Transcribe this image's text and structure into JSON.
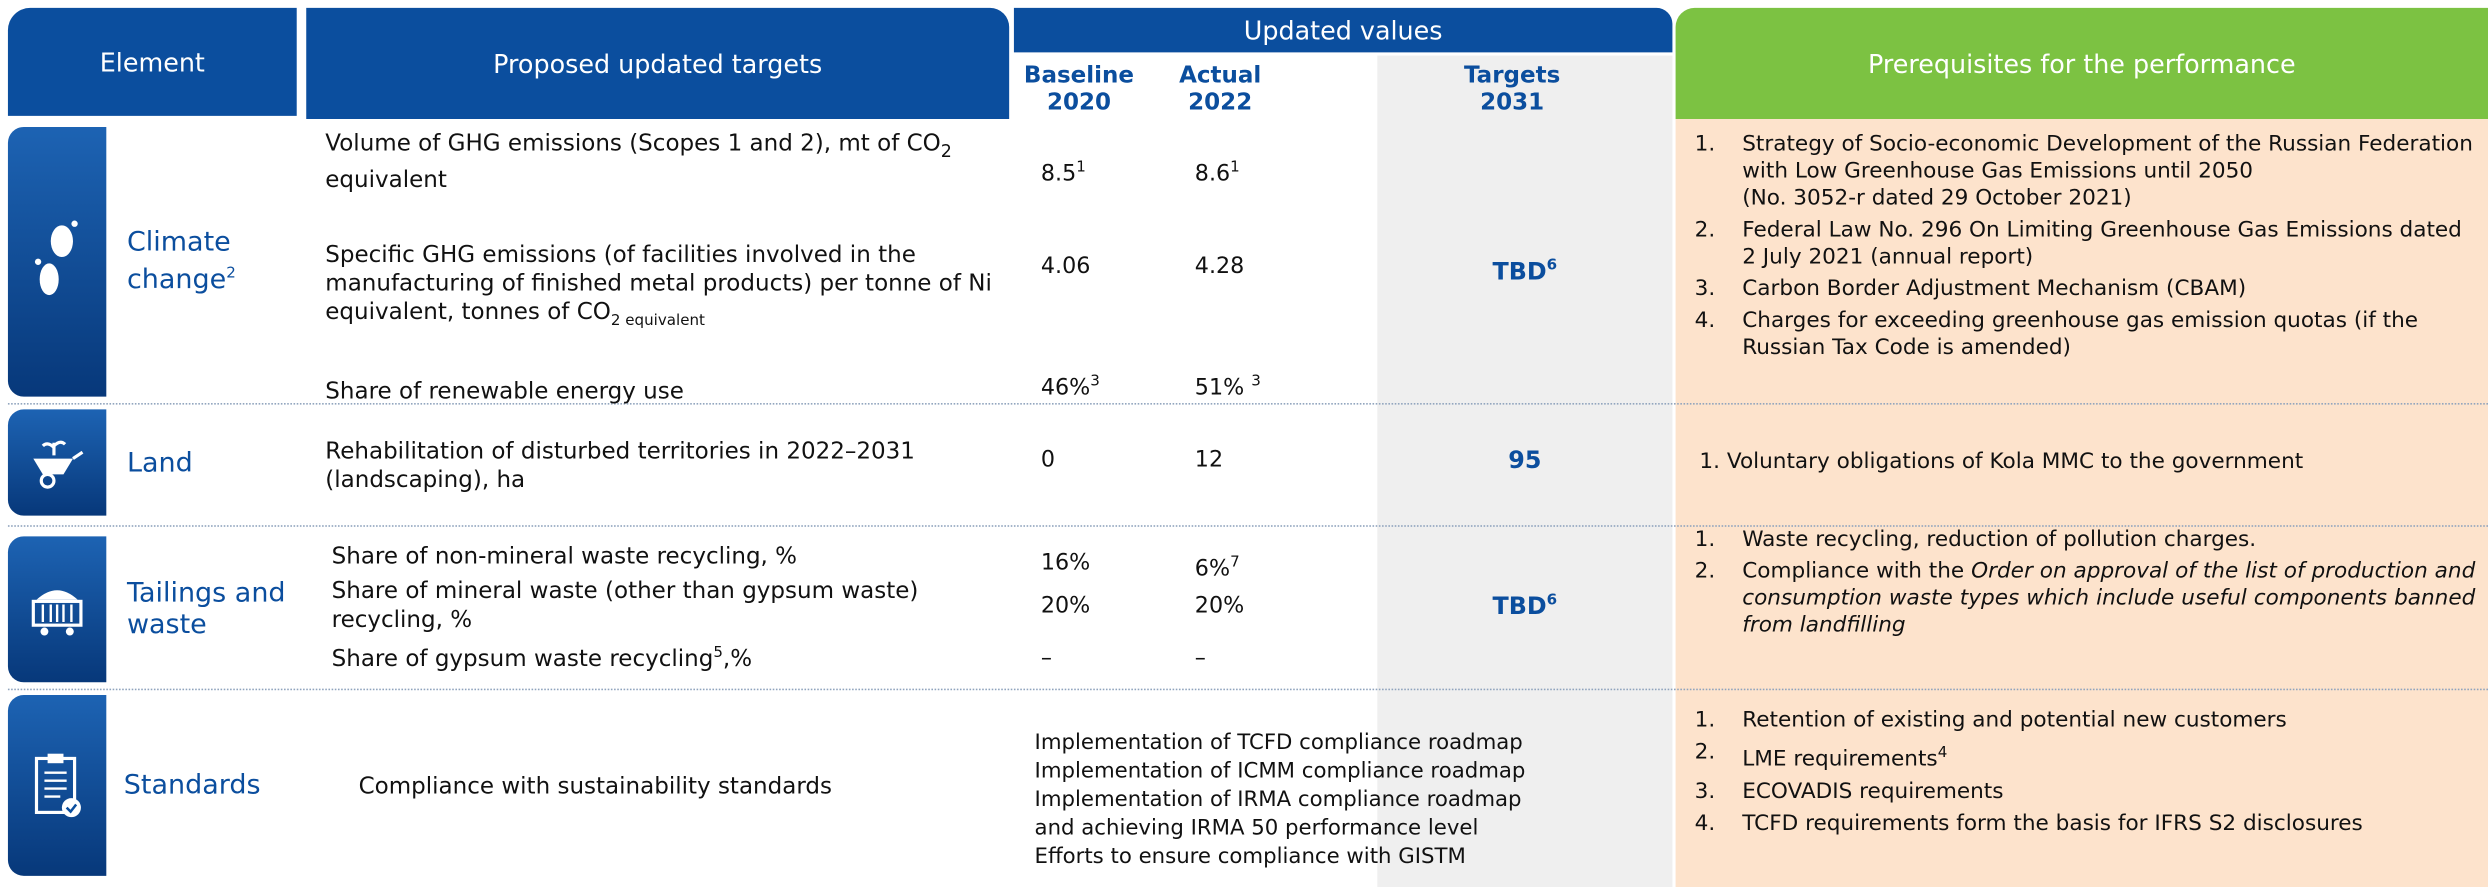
{
  "header": {
    "element": "Element",
    "targets": "Proposed updated targets",
    "updated_values": "Updated values",
    "baseline": "Baseline",
    "baseline_year": "2020",
    "actual": "Actual",
    "actual_year": "2022",
    "target": "Targets",
    "target_year": "2031",
    "prerequisites": "Prerequisites for the performance"
  },
  "rows": [
    {
      "element": "Climate change",
      "element_note": "2",
      "targets": [
        {
          "text": "Volume of GHG emissions (Scopes 1 and 2), mt of CO",
          "sub": "2",
          "text_end": " equivalent",
          "baseline": 8.5,
          "baseline_note": "1",
          "actual": 8.6,
          "actual_note": "1"
        },
        {
          "text": "Specific GHG emissions (of facilities involved in the manufacturing of finished metal products) per tonne of Ni equivalent, tonnes of CO",
          "sub": "2 equivalent",
          "baseline": 4.06,
          "actual": 4.28
        },
        {
          "text": "Share of renewable energy use",
          "baseline": "46%",
          "baseline_note": "3",
          "actual": "51% ",
          "actual_note": "3"
        }
      ],
      "target_2031": "TBD",
      "target_2031_note": "6",
      "prerequisites": [
        {
          "number": "1.",
          "text": "Strategy of Socio-economic Development of the Russian Federation with Low Greenhouse Gas Emissions until 2050",
          "detail": "(No. 3052-r dated 29 October 2021)"
        },
        {
          "number": "2.",
          "text": "Federal Law No. 296 On Limiting Greenhouse Gas Emissions dated 2 July 2021 (annual report)"
        },
        {
          "number": "3.",
          "text": "Carbon Border Adjustment Mechanism (CBAM)"
        },
        {
          "number": "4.",
          "text": "Charges for exceeding greenhouse gas emission quotas (if the Russian Tax Code is amended)"
        }
      ]
    },
    {
      "element": "Land",
      "targets": [
        {
          "text": "Rehabilitation of disturbed territories in 2022–2031 (landscaping), ha",
          "baseline": 0,
          "actual": 12
        }
      ],
      "target_2031": 95,
      "prerequisites": [
        {
          "number": "1.",
          "text": "Voluntary obligations of Kola MMC to the government"
        }
      ]
    },
    {
      "element": "Tailings and waste",
      "targets": [
        {
          "text": "Share of non-mineral waste recycling, %",
          "baseline": "16%",
          "actual": "6%",
          "actual_note": "7"
        },
        {
          "text": "Share of mineral waste (other than gypsum waste) recycling, %",
          "baseline": "20%",
          "actual": "20%"
        },
        {
          "text": "Share of gypsum waste recycling",
          "note": "5",
          "text_end": ",%",
          "baseline": "–",
          "actual": "–"
        }
      ],
      "target_2031": "TBD",
      "target_2031_note": "6",
      "prerequisites": [
        {
          "number": "1.",
          "text": "Waste recycling, reduction of pollution charges."
        },
        {
          "number": "2.",
          "text": "Compliance with the ",
          "italic": "Order on approval of the list of production and consumption waste types which include useful components banned from landfilling"
        }
      ]
    },
    {
      "element": "Standards",
      "targets": [
        {
          "text": "Compliance with sustainability standards"
        }
      ],
      "updated_values": [
        "Implementation of TCFD compliance roadmap",
        "Implementation of ICMM compliance roadmap",
        "Implementation of IRMA compliance roadmap",
        "and achieving IRMA 50 performance level",
        "Efforts to ensure compliance with GISTM"
      ],
      "prerequisites": [
        {
          "number": "1.",
          "text": "Retention of existing and potential new customers"
        },
        {
          "number": "2.",
          "text": "LME requirements",
          "note": "4"
        },
        {
          "number": "3.",
          "text": "ECOVADIS requirements"
        },
        {
          "number": "4.",
          "text": "TCFD requirements form the basis for IFRS S2 disclosures"
        }
      ]
    }
  ]
}
